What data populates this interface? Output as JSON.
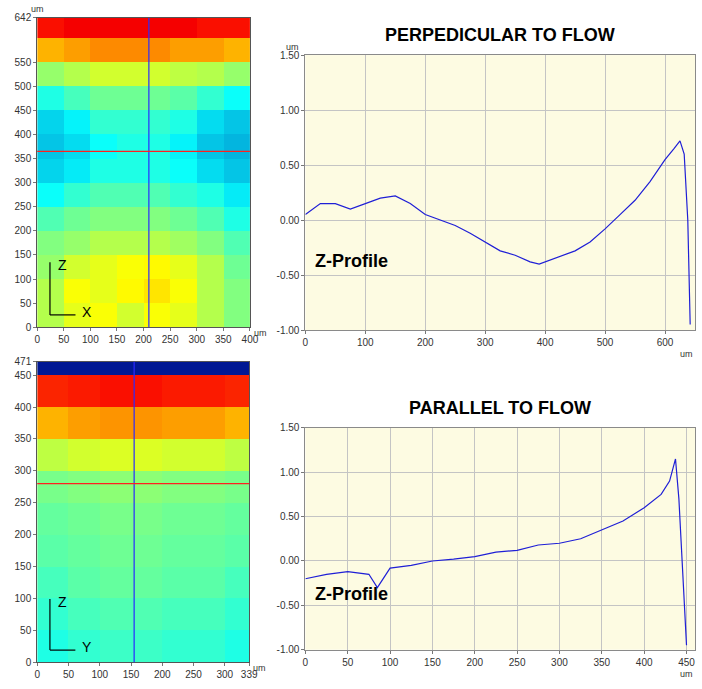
{
  "chart_data": [
    {
      "type": "heatmap",
      "x_label": "X",
      "y_label": "Z",
      "x_unit": "um",
      "y_unit": "um",
      "x": [
        25,
        75,
        125,
        175,
        225,
        275,
        325,
        375
      ],
      "y": [
        25,
        75,
        125,
        175,
        225,
        275,
        325,
        375,
        425,
        475,
        525,
        575,
        625
      ],
      "z": [
        [
          0.55,
          0.6,
          0.62,
          0.58,
          0.62,
          0.6,
          0.55,
          0.5
        ],
        [
          0.55,
          0.62,
          0.6,
          0.63,
          0.65,
          0.62,
          0.55,
          0.5
        ],
        [
          0.52,
          0.58,
          0.6,
          0.62,
          0.63,
          0.6,
          0.55,
          0.48
        ],
        [
          0.5,
          0.52,
          0.55,
          0.55,
          0.55,
          0.53,
          0.5,
          0.45
        ],
        [
          0.45,
          0.48,
          0.5,
          0.5,
          0.5,
          0.48,
          0.45,
          0.4
        ],
        [
          0.38,
          0.42,
          0.45,
          0.45,
          0.45,
          0.42,
          0.4,
          0.35
        ],
        [
          0.32,
          0.35,
          0.4,
          0.4,
          0.4,
          0.38,
          0.33,
          0.3
        ],
        [
          0.3,
          0.33,
          0.38,
          0.4,
          0.4,
          0.36,
          0.3,
          0.28
        ],
        [
          0.32,
          0.36,
          0.42,
          0.42,
          0.42,
          0.4,
          0.33,
          0.3
        ],
        [
          0.4,
          0.44,
          0.48,
          0.48,
          0.48,
          0.46,
          0.42,
          0.38
        ],
        [
          0.52,
          0.55,
          0.58,
          0.58,
          0.58,
          0.56,
          0.55,
          0.52
        ],
        [
          0.7,
          0.72,
          0.74,
          0.74,
          0.74,
          0.72,
          0.72,
          0.7
        ],
        [
          0.86,
          0.88,
          0.88,
          0.88,
          0.88,
          0.88,
          0.86,
          0.86
        ]
      ],
      "zlim": [
        0,
        1
      ],
      "xlim": [
        0,
        400
      ],
      "ylim": [
        0,
        642
      ],
      "xticks": [
        0,
        50,
        100,
        150,
        200,
        250,
        300,
        350,
        400
      ],
      "yticks": [
        0,
        50,
        100,
        150,
        200,
        250,
        300,
        350,
        400,
        450,
        500,
        550,
        642
      ],
      "cursors": [
        {
          "x": 210,
          "color": "#2a2aff"
        },
        {
          "y": 365,
          "color": "#ff2020"
        }
      ]
    },
    {
      "type": "line",
      "title": "PERPEDICULAR TO FLOW",
      "annotation": "Z-Profile",
      "x_unit": "um",
      "y_unit": "um",
      "color": "#1f1fd6",
      "grid": true,
      "x": [
        0,
        25,
        50,
        75,
        100,
        125,
        150,
        175,
        200,
        225,
        250,
        275,
        300,
        325,
        350,
        375,
        390,
        400,
        425,
        450,
        475,
        500,
        525,
        550,
        575,
        600,
        615,
        625,
        632,
        638,
        642
      ],
      "values": [
        0.05,
        0.15,
        0.15,
        0.1,
        0.15,
        0.2,
        0.22,
        0.15,
        0.05,
        0.0,
        -0.05,
        -0.12,
        -0.2,
        -0.28,
        -0.32,
        -0.38,
        -0.4,
        -0.38,
        -0.33,
        -0.28,
        -0.2,
        -0.08,
        0.05,
        0.18,
        0.35,
        0.55,
        0.65,
        0.72,
        0.6,
        0.0,
        -0.95
      ],
      "xlim": [
        0,
        650
      ],
      "ylim": [
        -1,
        1.5
      ],
      "xticks": [
        0,
        100,
        200,
        300,
        400,
        500,
        600
      ],
      "yticks": [
        {
          "value": -1,
          "label": "-1.00"
        },
        {
          "value": -0.5,
          "label": "-0.50"
        },
        {
          "value": 0,
          "label": "0.00"
        },
        {
          "value": 0.5,
          "label": "0.50"
        },
        {
          "value": 1,
          "label": "1.00"
        },
        {
          "value": 1.5,
          "label": "1.50"
        }
      ]
    },
    {
      "type": "heatmap",
      "x_label": "Y",
      "y_label": "Z",
      "x_unit": "um",
      "x": [
        25,
        75,
        125,
        175,
        225,
        275,
        325
      ],
      "y": [
        25,
        75,
        125,
        175,
        225,
        275,
        325,
        375,
        425,
        475
      ],
      "z": [
        [
          0.4,
          0.42,
          0.43,
          0.43,
          0.42,
          0.42,
          0.4
        ],
        [
          0.42,
          0.44,
          0.45,
          0.45,
          0.44,
          0.44,
          0.42
        ],
        [
          0.44,
          0.46,
          0.47,
          0.47,
          0.46,
          0.46,
          0.44
        ],
        [
          0.46,
          0.47,
          0.48,
          0.48,
          0.47,
          0.47,
          0.46
        ],
        [
          0.47,
          0.48,
          0.49,
          0.49,
          0.48,
          0.48,
          0.47
        ],
        [
          0.49,
          0.5,
          0.51,
          0.51,
          0.5,
          0.5,
          0.49
        ],
        [
          0.56,
          0.58,
          0.59,
          0.59,
          0.58,
          0.58,
          0.56
        ],
        [
          0.7,
          0.72,
          0.73,
          0.73,
          0.72,
          0.72,
          0.7
        ],
        [
          0.84,
          0.85,
          0.86,
          0.86,
          0.85,
          0.85,
          0.84
        ],
        [
          0.05,
          0.05,
          0.05,
          0.05,
          0.05,
          0.05,
          0.05
        ]
      ],
      "zlim": [
        0,
        1
      ],
      "xlim": [
        0,
        339
      ],
      "ylim": [
        0,
        471
      ],
      "xticks": [
        0,
        50,
        100,
        150,
        200,
        250,
        300,
        339
      ],
      "yticks": [
        0,
        50,
        100,
        150,
        200,
        250,
        300,
        350,
        400,
        450,
        471
      ],
      "cursors": [
        {
          "x": 155,
          "color": "#2a2aff"
        },
        {
          "y": 280,
          "color": "#ff2020"
        }
      ]
    },
    {
      "type": "line",
      "title": "PARALLEL TO FLOW",
      "annotation": "Z-Profile",
      "x_unit": "um",
      "color": "#1f1fd6",
      "grid": true,
      "x": [
        0,
        25,
        50,
        75,
        85,
        100,
        125,
        150,
        175,
        200,
        225,
        250,
        275,
        300,
        325,
        350,
        375,
        400,
        420,
        430,
        437,
        441,
        445,
        450
      ],
      "values": [
        -0.2,
        -0.15,
        -0.12,
        -0.15,
        -0.3,
        -0.08,
        -0.05,
        0.0,
        0.02,
        0.05,
        0.1,
        0.12,
        0.18,
        0.2,
        0.25,
        0.35,
        0.45,
        0.6,
        0.75,
        0.9,
        1.15,
        0.7,
        0.0,
        -0.95
      ],
      "xlim": [
        0,
        460
      ],
      "ylim": [
        -1,
        1.5
      ],
      "xticks": [
        0,
        50,
        100,
        150,
        200,
        250,
        300,
        350,
        400,
        450
      ],
      "yticks": [
        {
          "value": -1,
          "label": "-1.00"
        },
        {
          "value": -0.5,
          "label": "-0.50"
        },
        {
          "value": 0,
          "label": "0.00"
        },
        {
          "value": 0.5,
          "label": "0.50"
        },
        {
          "value": 1,
          "label": "1.00"
        },
        {
          "value": 1.5,
          "label": "1.50"
        }
      ]
    }
  ]
}
